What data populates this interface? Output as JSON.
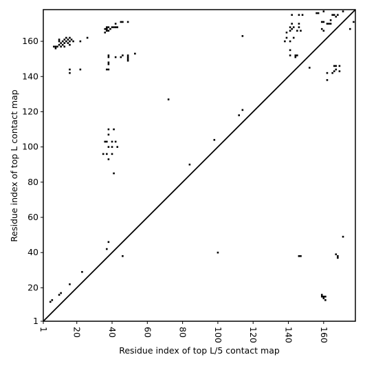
{
  "chart_data": {
    "type": "scatter",
    "xlabel": "Residue index of top L/5 contact map",
    "ylabel": "Residue index of top L contact map",
    "xlim": [
      1,
      178
    ],
    "ylim": [
      1,
      178
    ],
    "xticks": [
      1,
      20,
      40,
      60,
      80,
      100,
      120,
      140,
      160
    ],
    "yticks": [
      1,
      20,
      40,
      60,
      80,
      100,
      120,
      140,
      160
    ],
    "color": "#000000",
    "diagonal": true,
    "x": [
      7,
      8,
      9,
      8,
      10,
      10,
      11,
      11,
      12,
      12,
      13,
      13,
      14,
      14,
      15,
      15,
      16,
      16,
      17,
      18,
      10,
      13,
      16,
      16,
      16,
      22,
      22,
      26,
      23,
      16,
      10,
      11,
      6,
      5,
      36,
      37,
      37,
      38,
      38,
      39,
      40,
      41,
      42,
      43,
      42,
      36,
      37,
      45,
      46,
      49,
      38,
      38,
      38,
      38,
      38,
      37,
      42,
      45,
      46,
      49,
      49,
      49,
      49,
      53,
      38,
      41,
      38,
      37,
      36,
      38,
      40,
      40,
      42,
      43,
      35,
      37,
      40,
      38,
      41,
      37,
      38,
      46,
      72,
      84,
      98,
      100,
      112,
      114,
      114,
      139,
      138,
      139,
      141,
      141,
      141,
      142,
      142,
      142,
      143,
      143,
      144,
      144,
      145,
      145,
      146,
      146,
      147,
      146,
      148,
      141,
      141,
      152,
      156,
      157,
      160,
      159,
      160,
      159,
      160,
      162,
      163,
      164,
      164,
      165,
      166,
      167,
      168,
      171,
      175,
      177,
      162,
      162,
      165,
      166,
      166,
      167,
      167,
      169,
      169,
      171,
      167,
      168,
      168,
      146,
      147,
      159,
      160,
      160,
      161,
      161,
      159
    ],
    "values": [
      157,
      157,
      157,
      156,
      158,
      160,
      157,
      159,
      158,
      160,
      159,
      161,
      160,
      162,
      159,
      161,
      160,
      162,
      161,
      160,
      161,
      157,
      158,
      144,
      142,
      144,
      160,
      162,
      29,
      22,
      16,
      17,
      13,
      12,
      165,
      166,
      167,
      168,
      166,
      167,
      168,
      168,
      168,
      168,
      170,
      167,
      168,
      171,
      171,
      171,
      152,
      151,
      148,
      147,
      144,
      144,
      151,
      151,
      152,
      151,
      150,
      149,
      152,
      153,
      110,
      110,
      107,
      103,
      103,
      100,
      103,
      100,
      103,
      100,
      96,
      96,
      96,
      93,
      85,
      42,
      46,
      38,
      127,
      90,
      104,
      40,
      118,
      121,
      163,
      162,
      160,
      165,
      160,
      166,
      168,
      167,
      170,
      175,
      162,
      168,
      151,
      152,
      152,
      166,
      168,
      170,
      166,
      175,
      175,
      155,
      152,
      145,
      176,
      176,
      177,
      171,
      171,
      167,
      166,
      170,
      170,
      170,
      172,
      175,
      175,
      174,
      175,
      177,
      167,
      171,
      142,
      138,
      142,
      143,
      146,
      146,
      144,
      146,
      143,
      49,
      39,
      38,
      37,
      38,
      38,
      15,
      15,
      14,
      13,
      15,
      16
    ]
  }
}
